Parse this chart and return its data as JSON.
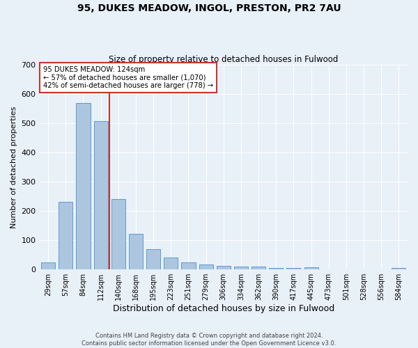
{
  "title1": "95, DUKES MEADOW, INGOL, PRESTON, PR2 7AU",
  "title2": "Size of property relative to detached houses in Fulwood",
  "xlabel": "Distribution of detached houses by size in Fulwood",
  "ylabel": "Number of detached properties",
  "categories": [
    "29sqm",
    "57sqm",
    "84sqm",
    "112sqm",
    "140sqm",
    "168sqm",
    "195sqm",
    "223sqm",
    "251sqm",
    "279sqm",
    "306sqm",
    "334sqm",
    "362sqm",
    "390sqm",
    "417sqm",
    "445sqm",
    "473sqm",
    "501sqm",
    "528sqm",
    "556sqm",
    "584sqm"
  ],
  "values": [
    25,
    232,
    570,
    507,
    240,
    122,
    70,
    40,
    25,
    18,
    12,
    10,
    10,
    5,
    5,
    7,
    0,
    0,
    0,
    0,
    5
  ],
  "bar_color": "#adc6e0",
  "bar_edge_color": "#5b9bd5",
  "bar_width": 0.8,
  "reference_line_x": 3.5,
  "reference_line_color": "#c0392b",
  "ylim": [
    0,
    700
  ],
  "yticks": [
    0,
    100,
    200,
    300,
    400,
    500,
    600,
    700
  ],
  "annotation_line1": "95 DUKES MEADOW: 124sqm",
  "annotation_line2": "← 57% of detached houses are smaller (1,070)",
  "annotation_line3": "42% of semi-detached houses are larger (778) →",
  "annotation_box_color": "#ffffff",
  "annotation_box_edge_color": "#c0392b",
  "background_color": "#e8f0f8",
  "footer_line1": "Contains HM Land Registry data © Crown copyright and database right 2024.",
  "footer_line2": "Contains public sector information licensed under the Open Government Licence v3.0."
}
